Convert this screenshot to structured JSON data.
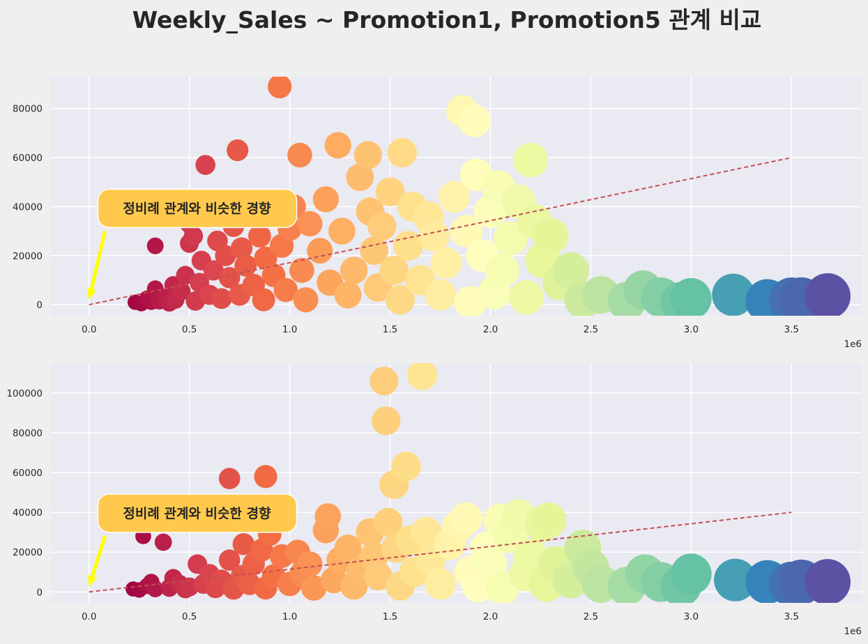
{
  "figure": {
    "title": "Weekly_Sales ~ Promotion1, Promotion5 관계 비교"
  },
  "chart_data": [
    {
      "type": "scatter",
      "title": "",
      "xlabel": "",
      "ylabel": "",
      "x_offset_label": "1e6",
      "xlim": [
        -190000,
        3850000
      ],
      "ylim": [
        -4500,
        93000
      ],
      "x_ticks": [
        0,
        500000,
        1000000,
        1500000,
        2000000,
        2500000,
        3000000,
        3500000
      ],
      "x_tick_labels": [
        "0.0",
        "0.5",
        "1.0",
        "1.5",
        "2.0",
        "2.5",
        "3.0",
        "3.5"
      ],
      "y_ticks": [
        0,
        20000,
        40000,
        60000,
        80000
      ],
      "y_tick_labels": [
        "0",
        "20000",
        "40000",
        "60000",
        "80000"
      ],
      "grid": true,
      "colormap": "Spectral",
      "points": [
        [
          230000,
          1000
        ],
        [
          260000,
          500
        ],
        [
          290000,
          2500
        ],
        [
          310000,
          1200
        ],
        [
          330000,
          6500
        ],
        [
          330000,
          24000
        ],
        [
          350000,
          1500
        ],
        [
          380000,
          3000
        ],
        [
          400000,
          800
        ],
        [
          420000,
          8000
        ],
        [
          430000,
          2000
        ],
        [
          460000,
          5500
        ],
        [
          480000,
          12000
        ],
        [
          500000,
          33000
        ],
        [
          500000,
          25000
        ],
        [
          520000,
          28000
        ],
        [
          530000,
          1500
        ],
        [
          550000,
          9000
        ],
        [
          560000,
          18000
        ],
        [
          580000,
          57000
        ],
        [
          600000,
          4000
        ],
        [
          620000,
          14000
        ],
        [
          640000,
          26000
        ],
        [
          650000,
          40000
        ],
        [
          660000,
          2500
        ],
        [
          680000,
          20000
        ],
        [
          700000,
          11000
        ],
        [
          720000,
          32000
        ],
        [
          740000,
          63000
        ],
        [
          750000,
          4000
        ],
        [
          760000,
          23000
        ],
        [
          780000,
          16000
        ],
        [
          800000,
          36000
        ],
        [
          820000,
          8000
        ],
        [
          850000,
          28000
        ],
        [
          870000,
          2000
        ],
        [
          880000,
          19000
        ],
        [
          900000,
          38000
        ],
        [
          920000,
          12000
        ],
        [
          950000,
          89000
        ],
        [
          960000,
          24000
        ],
        [
          980000,
          6000
        ],
        [
          1000000,
          31000
        ],
        [
          1020000,
          40000
        ],
        [
          1050000,
          61000
        ],
        [
          1060000,
          14000
        ],
        [
          1080000,
          2000
        ],
        [
          1100000,
          33000
        ],
        [
          1150000,
          22000
        ],
        [
          1180000,
          43000
        ],
        [
          1200000,
          9000
        ],
        [
          1240000,
          65000
        ],
        [
          1260000,
          30000
        ],
        [
          1290000,
          4000
        ],
        [
          1320000,
          14000
        ],
        [
          1350000,
          52000
        ],
        [
          1390000,
          61000
        ],
        [
          1400000,
          38000
        ],
        [
          1420000,
          22000
        ],
        [
          1440000,
          7000
        ],
        [
          1460000,
          32000
        ],
        [
          1500000,
          46000
        ],
        [
          1520000,
          14000
        ],
        [
          1550000,
          2000
        ],
        [
          1560000,
          62000
        ],
        [
          1590000,
          24000
        ],
        [
          1610000,
          40000
        ],
        [
          1650000,
          10000
        ],
        [
          1690000,
          36000
        ],
        [
          1720000,
          28000
        ],
        [
          1750000,
          4000
        ],
        [
          1780000,
          17000
        ],
        [
          1820000,
          44000
        ],
        [
          1860000,
          79000
        ],
        [
          1880000,
          30000
        ],
        [
          1900000,
          1000
        ],
        [
          1920000,
          75000
        ],
        [
          1930000,
          53000
        ],
        [
          1960000,
          20000
        ],
        [
          2000000,
          38000
        ],
        [
          2020000,
          5000
        ],
        [
          2040000,
          48000
        ],
        [
          2060000,
          14000
        ],
        [
          2100000,
          27000
        ],
        [
          2140000,
          42000
        ],
        [
          2180000,
          3000
        ],
        [
          2200000,
          59000
        ],
        [
          2220000,
          34000
        ],
        [
          2260000,
          18000
        ],
        [
          2300000,
          28000
        ],
        [
          2350000,
          9000
        ],
        [
          2400000,
          14000
        ],
        [
          2460000,
          2000
        ],
        [
          2550000,
          4000
        ],
        [
          2680000,
          1500
        ],
        [
          2760000,
          6000
        ],
        [
          2850000,
          3000
        ],
        [
          2950000,
          1000
        ],
        [
          3000000,
          2500
        ],
        [
          3210000,
          4000
        ],
        [
          3380000,
          1500
        ],
        [
          3500000,
          2000
        ],
        [
          3550000,
          2000
        ],
        [
          3680000,
          3500
        ]
      ],
      "trend_line": {
        "x": [
          0,
          3500000
        ],
        "y": [
          0,
          60000
        ]
      },
      "annotation": {
        "text": "정비례 관계와 비슷한 경향",
        "xy": [
          0,
          2000
        ],
        "xytext": [
          100000,
          38000
        ]
      }
    },
    {
      "type": "scatter",
      "title": "",
      "xlabel": "",
      "ylabel": "",
      "x_offset_label": "1e6",
      "xlim": [
        -190000,
        3850000
      ],
      "ylim": [
        -5500,
        115000
      ],
      "x_ticks": [
        0,
        500000,
        1000000,
        1500000,
        2000000,
        2500000,
        3000000,
        3500000
      ],
      "x_tick_labels": [
        "0.0",
        "0.5",
        "1.0",
        "1.5",
        "2.0",
        "2.5",
        "3.0",
        "3.5"
      ],
      "y_ticks": [
        0,
        20000,
        40000,
        60000,
        80000,
        100000
      ],
      "y_tick_labels": [
        "0",
        "20000",
        "40000",
        "60000",
        "80000",
        "100000"
      ],
      "grid": true,
      "colormap": "Spectral",
      "points": [
        [
          220000,
          1500
        ],
        [
          250000,
          1000
        ],
        [
          270000,
          28000
        ],
        [
          290000,
          3000
        ],
        [
          310000,
          5000
        ],
        [
          330000,
          1500
        ],
        [
          370000,
          25000
        ],
        [
          400000,
          2000
        ],
        [
          420000,
          7000
        ],
        [
          450000,
          4000
        ],
        [
          480000,
          1500
        ],
        [
          500000,
          2500
        ],
        [
          540000,
          14000
        ],
        [
          570000,
          4000
        ],
        [
          600000,
          9000
        ],
        [
          630000,
          2000
        ],
        [
          660000,
          6000
        ],
        [
          700000,
          57000
        ],
        [
          700000,
          16000
        ],
        [
          720000,
          1500
        ],
        [
          760000,
          8000
        ],
        [
          770000,
          24000
        ],
        [
          800000,
          4000
        ],
        [
          820000,
          14000
        ],
        [
          860000,
          21000
        ],
        [
          880000,
          58000
        ],
        [
          880000,
          2000
        ],
        [
          900000,
          29000
        ],
        [
          920000,
          8000
        ],
        [
          960000,
          18000
        ],
        [
          1000000,
          4000
        ],
        [
          1040000,
          20000
        ],
        [
          1060000,
          9000
        ],
        [
          1100000,
          14000
        ],
        [
          1120000,
          2000
        ],
        [
          1180000,
          31000
        ],
        [
          1190000,
          38000
        ],
        [
          1220000,
          6000
        ],
        [
          1250000,
          16000
        ],
        [
          1290000,
          22000
        ],
        [
          1320000,
          3000
        ],
        [
          1350000,
          11000
        ],
        [
          1400000,
          30000
        ],
        [
          1420000,
          18000
        ],
        [
          1440000,
          8000
        ],
        [
          1470000,
          106000
        ],
        [
          1480000,
          86000
        ],
        [
          1490000,
          35000
        ],
        [
          1520000,
          54000
        ],
        [
          1530000,
          22000
        ],
        [
          1550000,
          3000
        ],
        [
          1580000,
          63000
        ],
        [
          1600000,
          26000
        ],
        [
          1620000,
          10000
        ],
        [
          1660000,
          109000
        ],
        [
          1680000,
          30000
        ],
        [
          1700000,
          16000
        ],
        [
          1750000,
          4000
        ],
        [
          1800000,
          24000
        ],
        [
          1840000,
          33000
        ],
        [
          1880000,
          37000
        ],
        [
          1900000,
          10000
        ],
        [
          1940000,
          3000
        ],
        [
          1980000,
          22000
        ],
        [
          2000000,
          14000
        ],
        [
          2050000,
          36000
        ],
        [
          2060000,
          2000
        ],
        [
          2100000,
          28000
        ],
        [
          2140000,
          38000
        ],
        [
          2180000,
          9000
        ],
        [
          2200000,
          18000
        ],
        [
          2260000,
          34000
        ],
        [
          2280000,
          4000
        ],
        [
          2290000,
          36000
        ],
        [
          2330000,
          14000
        ],
        [
          2400000,
          6000
        ],
        [
          2460000,
          22000
        ],
        [
          2500000,
          12000
        ],
        [
          2550000,
          4000
        ],
        [
          2680000,
          3000
        ],
        [
          2770000,
          9000
        ],
        [
          2850000,
          5000
        ],
        [
          2950000,
          3000
        ],
        [
          3000000,
          9000
        ],
        [
          3220000,
          6000
        ],
        [
          3380000,
          5000
        ],
        [
          3500000,
          4000
        ],
        [
          3550000,
          5000
        ],
        [
          3680000,
          5000
        ]
      ],
      "trend_line": {
        "x": [
          0,
          3500000
        ],
        "y": [
          0,
          40000
        ]
      },
      "annotation": {
        "text": "정비례 관계와 비슷한 경향",
        "xy": [
          0,
          2500
        ],
        "xytext": [
          100000,
          38000
        ]
      }
    }
  ]
}
